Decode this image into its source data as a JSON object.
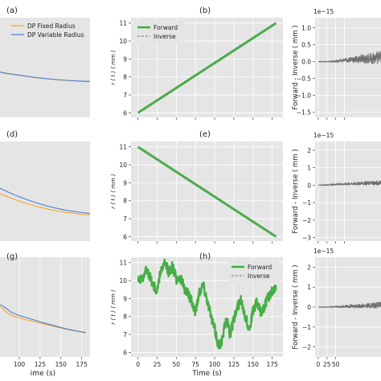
{
  "figure": {
    "colors": {
      "axes_bg": "#e5e5e5",
      "grid": "#ffffff",
      "fixed_radius": "#f5a623",
      "variable_radius": "#4a7fd4",
      "forward": "#3cb33c",
      "inverse": "#8a8a8a",
      "difference": "#707070"
    },
    "panels": [
      {
        "label": "(a)",
        "chart_data": {
          "type": "line",
          "xlabel": "",
          "ylabel": "",
          "legend": {
            "placement": "top-left",
            "entries": [
              "DP Fixed Radius",
              "DP Variable Radius"
            ]
          },
          "x_ticks": [],
          "y_ticks": [],
          "xlim": [
            0,
            180
          ],
          "ylim": [
            0,
            1
          ],
          "grid": true,
          "series": [
            {
              "name": "DP Fixed Radius",
              "color": "fixed_radius",
              "x": [
                0,
                20,
                40,
                60,
                80,
                100,
                120,
                140,
                160,
                180
              ],
              "y": [
                0.46,
                0.44,
                0.425,
                0.41,
                0.395,
                0.385,
                0.375,
                0.368,
                0.362,
                0.358
              ]
            },
            {
              "name": "DP Variable Radius",
              "color": "variable_radius",
              "x": [
                0,
                20,
                40,
                60,
                80,
                100,
                120,
                140,
                160,
                180
              ],
              "y": [
                0.462,
                0.442,
                0.427,
                0.412,
                0.397,
                0.387,
                0.377,
                0.37,
                0.364,
                0.36
              ]
            }
          ]
        }
      },
      {
        "label": "(b)",
        "chart_data": {
          "type": "line",
          "xlabel": "",
          "ylabel": "r ( t ) ( mm )",
          "legend": {
            "placement": "top-left",
            "entries": [
              "Forward",
              "Inverse"
            ]
          },
          "x_ticks": [
            "",
            "",
            "",
            "",
            "",
            "",
            "",
            ""
          ],
          "x_tick_values": [
            0,
            25,
            50,
            75,
            100,
            125,
            150,
            175
          ],
          "y_ticks": [
            "6",
            "7",
            "8",
            "9",
            "10",
            "11"
          ],
          "xlim": [
            -9,
            189
          ],
          "ylim": [
            5.75,
            11.3
          ],
          "grid": true,
          "series": [
            {
              "name": "Forward",
              "color": "forward",
              "x": [
                0,
                180
              ],
              "y": [
                6,
                11
              ]
            },
            {
              "name": "Inverse",
              "color": "inverse",
              "dashed": true,
              "x": [
                0,
                180
              ],
              "y": [
                6,
                11
              ]
            }
          ]
        }
      },
      {
        "label": "",
        "chart_data": {
          "type": "line",
          "xlabel": "",
          "ylabel": "Forward - Inverse ( mm )",
          "offset_text": "1e−15",
          "x_ticks": [
            "",
            "",
            "",
            ""
          ],
          "x_tick_values": [
            0,
            25,
            50,
            75
          ],
          "y_ticks": [
            "−1.5",
            "−1.0",
            "−0.5",
            "0.0",
            "0.5",
            "1.0"
          ],
          "y_tick_values": [
            -1.5,
            -1.0,
            -0.5,
            0.0,
            0.5,
            1.0
          ],
          "xlim": [
            -9,
            189
          ],
          "ylim": [
            -1.65,
            1.3
          ],
          "grid": true,
          "series": [
            {
              "name": "",
              "color": "difference",
              "noise": true,
              "x": [
                0,
                30,
                60,
                90,
                120,
                150,
                180
              ],
              "y": [
                0.0,
                0.0,
                0.02,
                0.05,
                0.08,
                0.1,
                0.12
              ],
              "amplitude": [
                0.01,
                0.02,
                0.04,
                0.08,
                0.12,
                0.16,
                0.2
              ]
            }
          ]
        }
      },
      {
        "label": "(d)",
        "chart_data": {
          "type": "line",
          "xlabel": "",
          "ylabel": "",
          "x_ticks": [],
          "y_ticks": [],
          "xlim": [
            0,
            180
          ],
          "ylim": [
            0,
            1
          ],
          "grid": true,
          "series": [
            {
              "name": "DP Fixed Radius",
              "color": "fixed_radius",
              "x": [
                0,
                20,
                40,
                60,
                80,
                100,
                120,
                140,
                160,
                180
              ],
              "y": [
                0.49,
                0.45,
                0.41,
                0.375,
                0.345,
                0.32,
                0.3,
                0.285,
                0.272,
                0.262
              ]
            },
            {
              "name": "DP Variable Radius",
              "color": "variable_radius",
              "x": [
                0,
                20,
                40,
                60,
                80,
                100,
                120,
                140,
                160,
                180
              ],
              "y": [
                0.55,
                0.5,
                0.455,
                0.415,
                0.38,
                0.35,
                0.325,
                0.305,
                0.29,
                0.278
              ]
            }
          ]
        }
      },
      {
        "label": "(e)",
        "chart_data": {
          "type": "line",
          "xlabel": "",
          "ylabel": "r ( t ) ( mm )",
          "x_ticks": [
            "",
            "",
            "",
            "",
            "",
            "",
            "",
            ""
          ],
          "x_tick_values": [
            0,
            25,
            50,
            75,
            100,
            125,
            150,
            175
          ],
          "y_ticks": [
            "6",
            "7",
            "8",
            "9",
            "10",
            "11"
          ],
          "xlim": [
            -9,
            189
          ],
          "ylim": [
            5.75,
            11.3
          ],
          "grid": true,
          "series": [
            {
              "name": "Forward",
              "color": "forward",
              "x": [
                0,
                180
              ],
              "y": [
                11,
                6
              ]
            },
            {
              "name": "Inverse",
              "color": "inverse",
              "dashed": true,
              "x": [
                0,
                180
              ],
              "y": [
                11,
                6
              ]
            }
          ]
        }
      },
      {
        "label": "",
        "chart_data": {
          "type": "line",
          "xlabel": "",
          "ylabel": "Forward - Inverse ( mm )",
          "offset_text": "1e−15",
          "x_ticks": [
            "",
            "",
            "",
            ""
          ],
          "x_tick_values": [
            0,
            25,
            50,
            75
          ],
          "y_ticks": [
            "−3",
            "−2",
            "−1",
            "0",
            "1",
            "2"
          ],
          "y_tick_values": [
            -3,
            -2,
            -1,
            0,
            1,
            2
          ],
          "xlim": [
            -9,
            189
          ],
          "ylim": [
            -3.2,
            2.5
          ],
          "grid": true,
          "series": [
            {
              "name": "",
              "color": "difference",
              "noise": true,
              "x": [
                0,
                30,
                60,
                90,
                120,
                150,
                180
              ],
              "y": [
                0.0,
                0.02,
                0.05,
                0.08,
                0.1,
                0.12,
                0.14
              ],
              "amplitude": [
                0.02,
                0.04,
                0.06,
                0.08,
                0.1,
                0.12,
                0.14
              ]
            }
          ]
        }
      },
      {
        "label": "(g)",
        "chart_data": {
          "type": "line",
          "xlabel": "ime (s)",
          "ylabel": "",
          "x_ticks": [
            "5",
            "100",
            "125",
            "150",
            "175"
          ],
          "x_tick_values": [
            75,
            100,
            125,
            150,
            175
          ],
          "y_ticks": [],
          "xlim": [
            72,
            185
          ],
          "ylim": [
            0,
            1
          ],
          "grid": true,
          "series": [
            {
              "name": "DP Fixed Radius",
              "color": "fixed_radius",
              "x": [
                72,
                78,
                82,
                86,
                90,
                100,
                110,
                120,
                130,
                140,
                150,
                160,
                170,
                180
              ],
              "y": [
                0.5,
                0.5,
                0.47,
                0.44,
                0.42,
                0.39,
                0.37,
                0.35,
                0.33,
                0.31,
                0.29,
                0.27,
                0.255,
                0.24
              ]
            },
            {
              "name": "DP Variable Radius",
              "color": "variable_radius",
              "x": [
                72,
                78,
                82,
                86,
                90,
                100,
                110,
                120,
                130,
                140,
                150,
                160,
                170,
                180
              ],
              "y": [
                0.52,
                0.52,
                0.5,
                0.475,
                0.45,
                0.415,
                0.39,
                0.365,
                0.34,
                0.318,
                0.295,
                0.275,
                0.258,
                0.245
              ]
            }
          ]
        }
      },
      {
        "label": "(h)",
        "chart_data": {
          "type": "line",
          "xlabel": "Time (s)",
          "ylabel": "r ( t ) ( mm )",
          "legend": {
            "placement": "top-right",
            "entries": [
              "Forward",
              "Inverse"
            ]
          },
          "x_ticks": [
            "0",
            "25",
            "50",
            "75",
            "100",
            "125",
            "150",
            "175"
          ],
          "x_tick_values": [
            0,
            25,
            50,
            75,
            100,
            125,
            150,
            175
          ],
          "y_ticks": [
            "6",
            "7",
            "8",
            "9",
            "10",
            "11"
          ],
          "xlim": [
            -9,
            189
          ],
          "ylim": [
            5.75,
            11.3
          ],
          "grid": true,
          "series": [
            {
              "name": "Forward",
              "color": "forward",
              "noise": true,
              "x": [
                0,
                5,
                10,
                15,
                20,
                25,
                30,
                35,
                40,
                45,
                50,
                55,
                60,
                65,
                70,
                75,
                80,
                85,
                90,
                95,
                100,
                105,
                110,
                115,
                120,
                125,
                130,
                135,
                140,
                145,
                150,
                155,
                160,
                165,
                170,
                175,
                180
              ],
              "y": [
                10.2,
                10.0,
                10.6,
                10.3,
                9.7,
                9.4,
                10.6,
                10.9,
                10.5,
                10.8,
                10.1,
                10.2,
                9.6,
                9.3,
                8.8,
                8.3,
                9.4,
                9.8,
                9.0,
                8.0,
                7.3,
                6.4,
                6.7,
                7.9,
                7.0,
                7.8,
                8.6,
                8.9,
                8.0,
                7.3,
                8.3,
                8.8,
                8.2,
                8.6,
                9.1,
                9.4,
                9.5
              ],
              "amplitude": [
                0.3,
                0.3,
                0.3,
                0.3,
                0.3,
                0.3,
                0.3,
                0.3,
                0.3,
                0.3,
                0.3,
                0.3,
                0.3,
                0.3,
                0.3,
                0.3,
                0.3,
                0.3,
                0.3,
                0.3,
                0.3,
                0.3,
                0.3,
                0.3,
                0.3,
                0.3,
                0.3,
                0.3,
                0.3,
                0.3,
                0.3,
                0.3,
                0.3,
                0.3,
                0.3,
                0.3,
                0.3
              ]
            },
            {
              "name": "Inverse",
              "color": "inverse",
              "dashed": true,
              "x": [
                0,
                5,
                10,
                15,
                20,
                25,
                30,
                35,
                40,
                45,
                50,
                55,
                60,
                65,
                70,
                75,
                80,
                85,
                90,
                95,
                100,
                105,
                110,
                115,
                120,
                125,
                130,
                135,
                140,
                145,
                150,
                155,
                160,
                165,
                170,
                175,
                180
              ],
              "y": [
                10.2,
                10.0,
                10.6,
                10.3,
                9.7,
                9.4,
                10.6,
                10.9,
                10.5,
                10.8,
                10.1,
                10.2,
                9.6,
                9.3,
                8.8,
                8.3,
                9.4,
                9.8,
                9.0,
                8.0,
                7.3,
                6.4,
                6.7,
                7.9,
                7.0,
                7.8,
                8.6,
                8.9,
                8.0,
                7.3,
                8.3,
                8.8,
                8.2,
                8.6,
                9.1,
                9.4,
                9.5
              ]
            }
          ]
        }
      },
      {
        "label": "",
        "chart_data": {
          "type": "line",
          "xlabel": "",
          "ylabel": "Forward - Inverse ( mm )",
          "offset_text": "1e−15",
          "x_ticks": [
            "0",
            "25",
            "50"
          ],
          "x_tick_values": [
            0,
            25,
            50
          ],
          "y_ticks": [
            "−2",
            "−1",
            "0",
            "1",
            "2"
          ],
          "y_tick_values": [
            -2,
            -1,
            0,
            1,
            2
          ],
          "xlim": [
            -9,
            189
          ],
          "ylim": [
            -2.5,
            2.5
          ],
          "grid": true,
          "series": [
            {
              "name": "",
              "color": "difference",
              "noise": true,
              "x": [
                0,
                30,
                60,
                90,
                120,
                150,
                180
              ],
              "y": [
                0.0,
                0.0,
                0.02,
                0.04,
                0.06,
                0.08,
                0.1
              ],
              "amplitude": [
                0.01,
                0.03,
                0.05,
                0.08,
                0.1,
                0.13,
                0.16
              ]
            }
          ]
        }
      }
    ]
  }
}
